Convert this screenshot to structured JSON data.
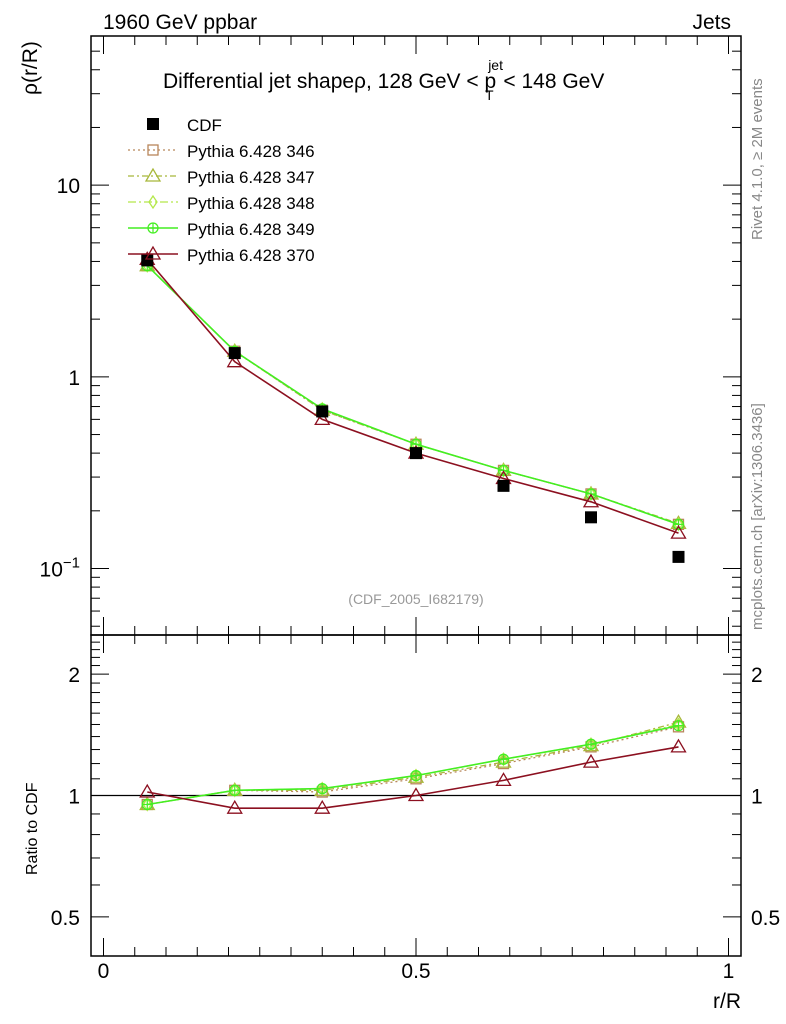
{
  "header": {
    "left": "1960 GeV ppbar",
    "right": "Jets"
  },
  "side_labels": {
    "rivet": "Rivet 4.1.0, ≥ 2M events",
    "mcplots": "mcplots.cern.ch [arXiv:1306.3436]"
  },
  "analysis_id": "(CDF_2005_I682179)",
  "colors": {
    "cdf": "#000000",
    "p346": "#b8865a",
    "p347": "#a8b83a",
    "p348": "#b4e84a",
    "p349": "#44ee22",
    "p370": "#8c1020"
  },
  "chart_data": [
    {
      "type": "line",
      "title_parts": {
        "main": "Differential jet shapeρ, 128 GeV < p",
        "sup": "jet",
        "sub": "T",
        "tail": " < 148 GeV"
      },
      "xlabel": "r/R",
      "ylabel": "ρ(r/R)",
      "xlim": [
        -0.02,
        1.02
      ],
      "ylim": [
        0.045,
        60
      ],
      "yscale": "log",
      "yticks": [
        {
          "value": 0.1,
          "base": "10",
          "exp": "−1"
        },
        {
          "value": 1,
          "label": "1"
        },
        {
          "value": 10,
          "label": "10"
        }
      ],
      "x": [
        0.07,
        0.21,
        0.35,
        0.5,
        0.64,
        0.78,
        0.92
      ],
      "series": [
        {
          "name": "CDF",
          "style": "data",
          "marker": "square",
          "values": [
            4.05,
            1.33,
            0.66,
            0.4,
            0.27,
            0.185,
            0.115
          ]
        },
        {
          "name": "Pythia 6.428 346",
          "style": "dotted",
          "marker": "open-square",
          "values": [
            3.8,
            1.36,
            0.67,
            0.445,
            0.325,
            0.245,
            0.17
          ]
        },
        {
          "name": "Pythia 6.428 347",
          "style": "dashdot",
          "marker": "open-triangle",
          "values": [
            3.8,
            1.36,
            0.67,
            0.445,
            0.325,
            0.245,
            0.172
          ]
        },
        {
          "name": "Pythia 6.428 348",
          "style": "dashdot2",
          "marker": "open-diamond",
          "values": [
            3.8,
            1.36,
            0.68,
            0.445,
            0.325,
            0.245,
            0.17
          ]
        },
        {
          "name": "Pythia 6.428 349",
          "style": "solid",
          "marker": "crossed-circle",
          "values": [
            3.8,
            1.36,
            0.68,
            0.445,
            0.325,
            0.245,
            0.17
          ]
        },
        {
          "name": "Pythia 6.428 370",
          "style": "solid",
          "marker": "open-triangle",
          "values": [
            4.1,
            1.2,
            0.6,
            0.4,
            0.295,
            0.223,
            0.153
          ]
        }
      ]
    },
    {
      "type": "line",
      "title": "",
      "xlabel": "r/R",
      "ylabel": "Ratio to CDF",
      "xlim": [
        -0.02,
        1.02
      ],
      "ylim": [
        0.4,
        2.5
      ],
      "yscale": "log",
      "yticks": [
        {
          "value": 0.5,
          "label": "0.5"
        },
        {
          "value": 1,
          "label": "1"
        },
        {
          "value": 2,
          "label": "2"
        }
      ],
      "xticks": [
        {
          "value": 0,
          "label": "0"
        },
        {
          "value": 0.5,
          "label": "0.5"
        },
        {
          "value": 1,
          "label": "1"
        }
      ],
      "reference": 1,
      "x": [
        0.07,
        0.21,
        0.35,
        0.5,
        0.64,
        0.78,
        0.92
      ],
      "series": [
        {
          "name": "Pythia 6.428 346",
          "style": "dotted",
          "marker": "open-square",
          "values": [
            0.95,
            1.03,
            1.02,
            1.1,
            1.2,
            1.32,
            1.48
          ]
        },
        {
          "name": "Pythia 6.428 347",
          "style": "dashdot",
          "marker": "open-triangle",
          "values": [
            0.95,
            1.03,
            1.03,
            1.11,
            1.21,
            1.33,
            1.52
          ]
        },
        {
          "name": "Pythia 6.428 348",
          "style": "dashdot2",
          "marker": "open-diamond",
          "values": [
            0.95,
            1.03,
            1.04,
            1.12,
            1.23,
            1.34,
            1.5
          ]
        },
        {
          "name": "Pythia 6.428 349",
          "style": "solid",
          "marker": "crossed-circle",
          "values": [
            0.95,
            1.03,
            1.04,
            1.12,
            1.23,
            1.34,
            1.49
          ]
        },
        {
          "name": "Pythia 6.428 370",
          "style": "solid",
          "marker": "open-triangle",
          "values": [
            1.02,
            0.93,
            0.93,
            1.0,
            1.09,
            1.21,
            1.32
          ]
        }
      ]
    }
  ]
}
